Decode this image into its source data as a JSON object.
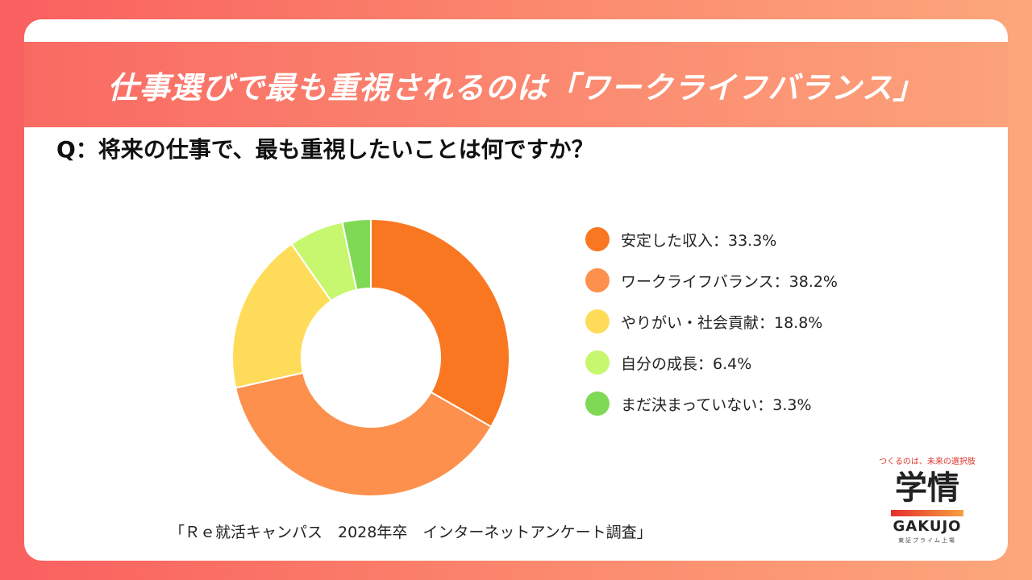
{
  "header": {
    "title": "仕事選びで最も重視されるのは「ワークライフバランス」"
  },
  "question": "Q：将来の仕事で、最も重視したいことは何ですか？",
  "chart_data": {
    "type": "pie",
    "variant": "donut",
    "title": "Q：将来の仕事で、最も重視したいことは何ですか？",
    "categories": [
      "安定した収入",
      "ワークライフバランス",
      "やりがい・社会貢献",
      "自分の成長",
      "まだ決まっていない"
    ],
    "values": [
      33.3,
      38.2,
      18.8,
      6.4,
      3.3
    ],
    "unit": "%",
    "colors": [
      "#fa7722",
      "#fc904c",
      "#fedc5a",
      "#c7f76e",
      "#7fd955"
    ],
    "legend_position": "right"
  },
  "legend": {
    "items": [
      {
        "label": "安定した収入：33.3%",
        "color": "#fa7722"
      },
      {
        "label": "ワークライフバランス：38.2%",
        "color": "#fc904c"
      },
      {
        "label": "やりがい・社会貢献：18.8%",
        "color": "#fedc5a"
      },
      {
        "label": "自分の成長：6.4%",
        "color": "#c7f76e"
      },
      {
        "label": "まだ決まっていない：3.3%",
        "color": "#7fd955"
      }
    ]
  },
  "source": "「Ｒｅ就活キャンパス　2028年卒　インターネットアンケート調査」",
  "logo": {
    "tagline": "つくるのは、未来の選択肢",
    "main": "学情",
    "english": "GAKUJO",
    "sub": "東証プライム上場"
  }
}
